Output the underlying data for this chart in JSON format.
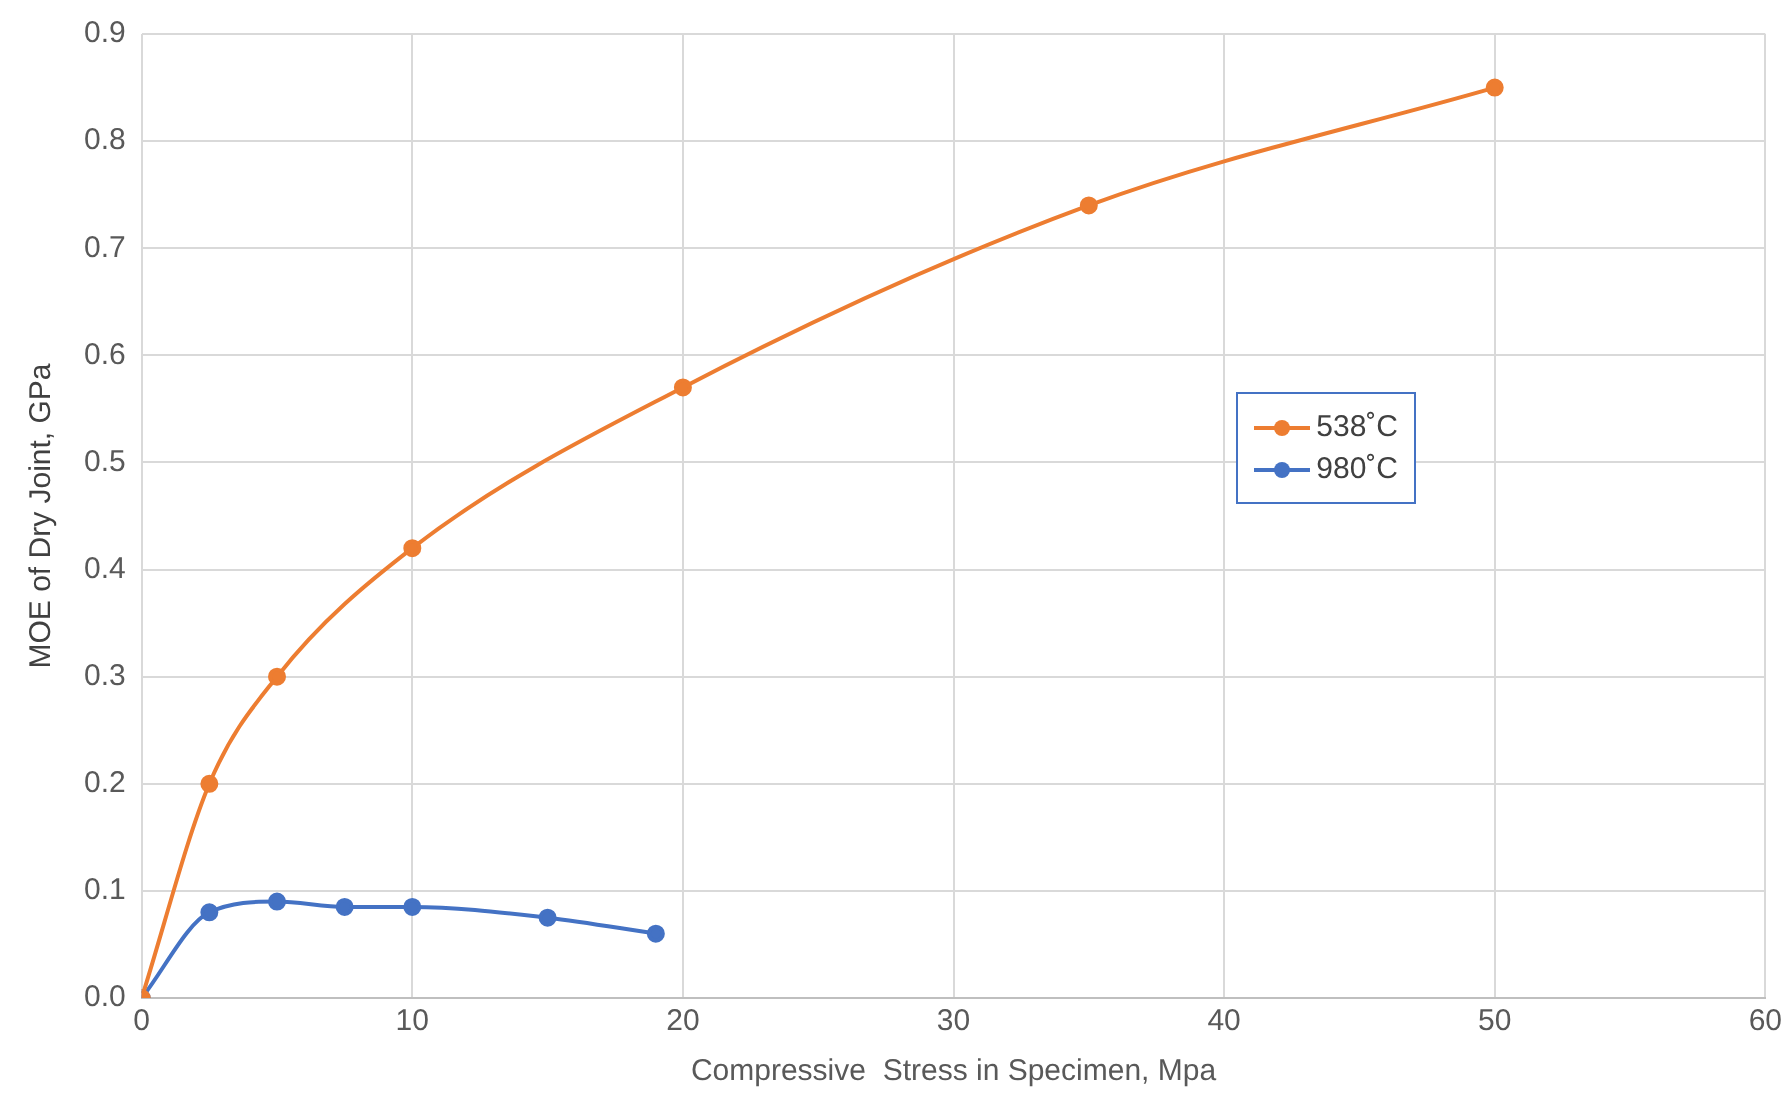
{
  "chart_data": {
    "type": "line",
    "xlabel": "Compressive  Stress in Specimen, Mpa",
    "ylabel": "MOE of Dry Joint, GPa",
    "xlim": [
      0,
      60
    ],
    "xticks": [
      0,
      10,
      20,
      30,
      40,
      50,
      60
    ],
    "ylim": [
      0,
      0.9
    ],
    "yticks": [
      {
        "value": 0,
        "label": "0.0"
      },
      {
        "value": 0.1,
        "label": "0.1"
      },
      {
        "value": 0.2,
        "label": "0.2"
      },
      {
        "value": 0.3,
        "label": "0.3"
      },
      {
        "value": 0.4,
        "label": "0.4"
      },
      {
        "value": 0.5,
        "label": "0.5"
      },
      {
        "value": 0.6,
        "label": "0.6"
      },
      {
        "value": 0.7,
        "label": "0.7"
      },
      {
        "value": 0.8,
        "label": "0.8"
      },
      {
        "value": 0.9,
        "label": "0.9"
      }
    ],
    "grid": true,
    "legend": "right",
    "marker": "circle",
    "line_style": "solid",
    "series": [
      {
        "name": "538˚C",
        "color": "#ed7d31",
        "x": [
          0,
          2.5,
          5,
          10,
          20,
          35,
          50
        ],
        "values": [
          0,
          0.2,
          0.3,
          0.42,
          0.57,
          0.74,
          0.85
        ]
      },
      {
        "name": "980˚C",
        "color": "#4472c4",
        "x": [
          0,
          2.5,
          5,
          7.5,
          10,
          15,
          19
        ],
        "values": [
          0,
          0.08,
          0.09,
          0.085,
          0.085,
          0.075,
          0.06
        ]
      }
    ]
  }
}
